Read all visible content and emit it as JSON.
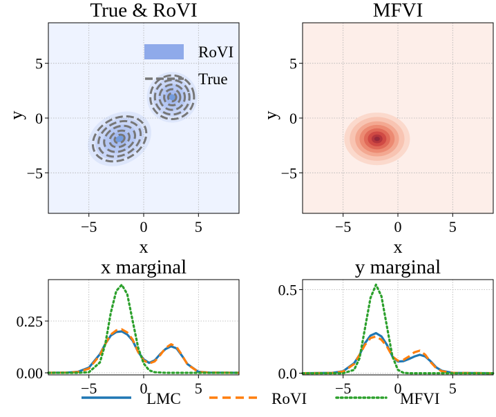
{
  "chart_data": [
    {
      "type": "contour",
      "title": "True & RoVI",
      "xlabel": "x",
      "ylabel": "y",
      "xlim": [
        -8.7,
        8.7
      ],
      "ylim": [
        -8.7,
        8.7
      ],
      "xticks": [
        -5,
        0,
        5
      ],
      "yticks": [
        -5,
        0,
        5
      ],
      "xtick_labels": [
        "−5",
        "0",
        "5"
      ],
      "ytick_labels": [
        "−5",
        "0",
        "5"
      ],
      "grid": true,
      "background": "#eef3ff",
      "legend": {
        "position": "top-right",
        "entries": [
          "RoVI",
          "True"
        ]
      },
      "components": [
        {
          "series": "RoVI",
          "mean": [
            -2.2,
            -1.9
          ],
          "sd": [
            1.45,
            1.1
          ],
          "corr": 0.72,
          "color": "#8faaea"
        },
        {
          "series": "RoVI",
          "mean": [
            2.6,
            1.9
          ],
          "sd": [
            1.1,
            1.1
          ],
          "corr": 0.25,
          "color": "#8faaea"
        },
        {
          "series": "True",
          "mean": [
            -2.2,
            -1.9
          ],
          "sd": [
            1.35,
            1.0
          ],
          "corr": 0.7,
          "color": "#777777"
        },
        {
          "series": "True",
          "mean": [
            2.6,
            1.9
          ],
          "sd": [
            1.05,
            1.05
          ],
          "corr": 0.25,
          "color": "#777777"
        }
      ]
    },
    {
      "type": "contour",
      "title": "MFVI",
      "xlabel": "x",
      "ylabel": "y",
      "xlim": [
        -8.7,
        8.7
      ],
      "ylim": [
        -8.7,
        8.7
      ],
      "xticks": [
        -5,
        0,
        5
      ],
      "yticks": [
        -5,
        0,
        5
      ],
      "xtick_labels": [
        "−5",
        "0",
        "5"
      ],
      "ytick_labels": [
        "−5",
        "0",
        "5"
      ],
      "grid": true,
      "background": "#fdeee9",
      "components": [
        {
          "series": "MFVI",
          "mean": [
            -1.9,
            -1.9
          ],
          "sd": [
            1.0,
            0.8
          ],
          "color": "#c0504d"
        }
      ]
    },
    {
      "type": "line",
      "title": "x marginal",
      "xlim": [
        -8.7,
        8.7
      ],
      "ylim": [
        -0.01,
        0.45
      ],
      "xticks": [
        -5,
        0,
        5
      ],
      "yticks": [
        0.0,
        0.25
      ],
      "xtick_labels": [
        "−5",
        "0",
        "5"
      ],
      "ytick_labels": [
        "0.00",
        "0.25"
      ],
      "grid": true,
      "series": [
        {
          "name": "LMC",
          "color": "#1f77b4",
          "style": "solid",
          "x": [
            -8.7,
            -7,
            -6,
            -5,
            -4,
            -3.5,
            -3,
            -2.5,
            -2,
            -1.5,
            -1,
            -0.5,
            0,
            0.5,
            1,
            1.5,
            2,
            2.5,
            3,
            3.5,
            4,
            5,
            6,
            8.7
          ],
          "y": [
            0,
            0.001,
            0.005,
            0.025,
            0.09,
            0.14,
            0.18,
            0.197,
            0.2,
            0.185,
            0.155,
            0.1,
            0.065,
            0.048,
            0.06,
            0.09,
            0.115,
            0.128,
            0.118,
            0.082,
            0.042,
            0.005,
            0.001,
            0
          ]
        },
        {
          "name": "RoVI",
          "color": "#ff7f0e",
          "style": "dashed",
          "x": [
            -8.7,
            -7,
            -6,
            -5,
            -4,
            -3.5,
            -3,
            -2.5,
            -2,
            -1.5,
            -1,
            -0.5,
            0,
            0.5,
            1,
            1.5,
            2,
            2.5,
            3,
            3.5,
            4,
            5,
            6,
            8.7
          ],
          "y": [
            0,
            0.001,
            0.004,
            0.02,
            0.085,
            0.14,
            0.185,
            0.205,
            0.21,
            0.195,
            0.16,
            0.1,
            0.06,
            0.045,
            0.055,
            0.085,
            0.12,
            0.138,
            0.125,
            0.085,
            0.04,
            0.004,
            0.001,
            0
          ]
        },
        {
          "name": "MFVI",
          "color": "#2ca02c",
          "style": "dotted",
          "x": [
            -8.7,
            -6,
            -5,
            -4,
            -3.5,
            -3,
            -2.5,
            -2,
            -1.5,
            -1,
            -0.5,
            0,
            0.5,
            1,
            2,
            8.7
          ],
          "y": [
            0,
            0,
            0.003,
            0.05,
            0.14,
            0.29,
            0.395,
            0.425,
            0.38,
            0.25,
            0.12,
            0.045,
            0.012,
            0.003,
            0,
            0
          ]
        }
      ]
    },
    {
      "type": "line",
      "title": "y marginal",
      "xlim": [
        -8.7,
        8.7
      ],
      "ylim": [
        -0.01,
        0.56
      ],
      "xticks": [
        -5,
        0,
        5
      ],
      "yticks": [
        0.0,
        0.5
      ],
      "xtick_labels": [
        "−5",
        "0",
        "5"
      ],
      "ytick_labels": [
        "0.0",
        "0.5"
      ],
      "grid": true,
      "series": [
        {
          "name": "LMC",
          "color": "#1f77b4",
          "style": "solid",
          "x": [
            -8.7,
            -6,
            -5,
            -4,
            -3.5,
            -3,
            -2.5,
            -2,
            -1.5,
            -1,
            -0.5,
            0,
            0.5,
            1,
            1.5,
            2,
            2.5,
            3,
            3.5,
            4,
            5,
            8.7
          ],
          "y": [
            0,
            0.002,
            0.012,
            0.06,
            0.11,
            0.18,
            0.225,
            0.24,
            0.22,
            0.17,
            0.1,
            0.07,
            0.072,
            0.085,
            0.1,
            0.11,
            0.1,
            0.07,
            0.035,
            0.015,
            0.002,
            0
          ]
        },
        {
          "name": "RoVI",
          "color": "#ff7f0e",
          "style": "dashed",
          "x": [
            -8.7,
            -6,
            -5,
            -4,
            -3.5,
            -3,
            -2.5,
            -2,
            -1.5,
            -1,
            -0.5,
            0,
            0.5,
            1,
            1.5,
            2,
            2.5,
            3,
            3.5,
            4,
            5,
            8.7
          ],
          "y": [
            0,
            0.001,
            0.01,
            0.055,
            0.11,
            0.17,
            0.21,
            0.22,
            0.2,
            0.16,
            0.1,
            0.075,
            0.08,
            0.1,
            0.125,
            0.135,
            0.11,
            0.065,
            0.03,
            0.012,
            0.002,
            0
          ]
        },
        {
          "name": "MFVI",
          "color": "#2ca02c",
          "style": "dotted",
          "x": [
            -8.7,
            -5,
            -4,
            -3.5,
            -3,
            -2.5,
            -2,
            -1.5,
            -1,
            -0.5,
            0,
            0.5,
            1,
            8.7
          ],
          "y": [
            0,
            0,
            0.02,
            0.09,
            0.27,
            0.45,
            0.53,
            0.46,
            0.28,
            0.1,
            0.02,
            0.003,
            0,
            0
          ]
        }
      ]
    }
  ],
  "legend": {
    "entries": [
      {
        "label": "LMC",
        "color": "#1f77b4",
        "style": "solid"
      },
      {
        "label": "RoVI",
        "color": "#ff7f0e",
        "style": "dashed"
      },
      {
        "label": "MFVI",
        "color": "#2ca02c",
        "style": "dotted"
      }
    ]
  }
}
